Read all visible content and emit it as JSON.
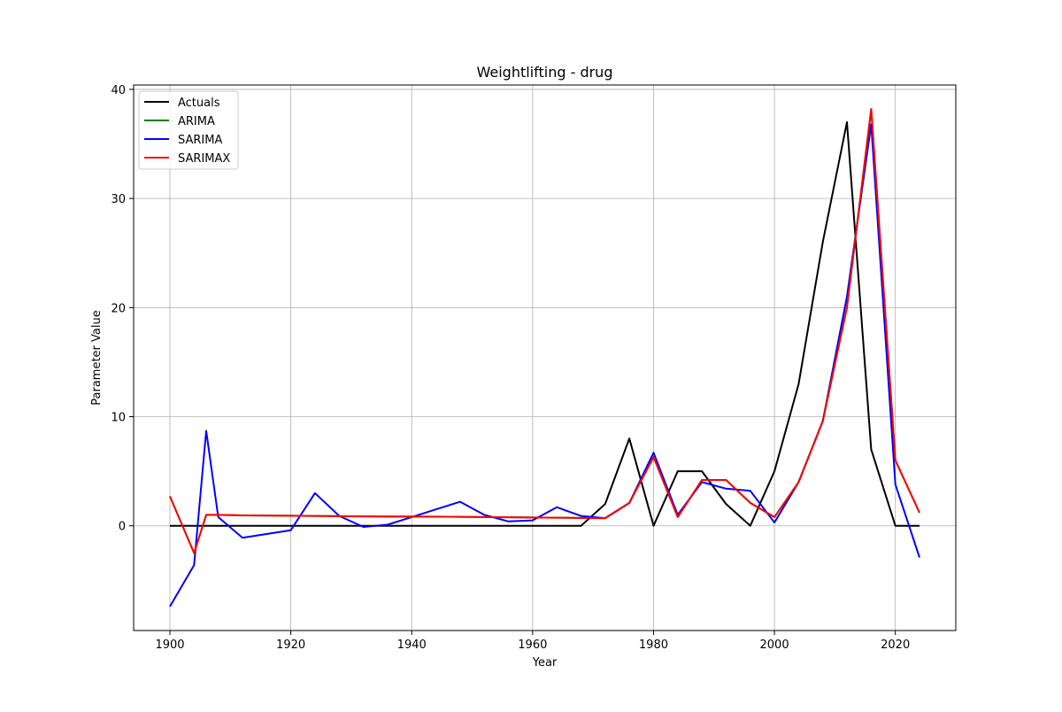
{
  "chart_data": {
    "type": "line",
    "title": "Weightlifting - drug",
    "xlabel": "Year",
    "ylabel": "Parameter Value",
    "xlim": [
      1894,
      2030
    ],
    "ylim": [
      -9.6,
      40.4
    ],
    "xticks": [
      1900,
      1920,
      1940,
      1960,
      1980,
      2000,
      2020
    ],
    "yticks": [
      0,
      10,
      20,
      30,
      40
    ],
    "grid": true,
    "legend_position": "upper-left",
    "series": [
      {
        "name": "Actuals",
        "color": "#000000",
        "x": [
          1900,
          1904,
          1908,
          1912,
          1920,
          1924,
          1928,
          1932,
          1936,
          1948,
          1952,
          1956,
          1960,
          1964,
          1968,
          1972,
          1976,
          1980,
          1984,
          1988,
          1992,
          1996,
          2000,
          2004,
          2008,
          2012,
          2016,
          2020,
          2024
        ],
        "values": [
          0,
          0,
          0,
          0,
          0,
          0,
          0,
          0,
          0,
          0,
          0,
          0,
          0,
          0,
          0,
          2,
          8,
          0,
          5,
          5,
          2,
          0,
          5,
          13,
          26,
          37,
          7,
          0,
          0
        ]
      },
      {
        "name": "ARIMA",
        "color": "#008000",
        "x": [
          1900,
          1904,
          1906,
          1908,
          1912,
          1920,
          1924,
          1928,
          1932,
          1936,
          1948,
          1952,
          1956,
          1960,
          1964,
          1968,
          1972,
          1976,
          1980,
          1984,
          1988,
          1992,
          1996,
          2000,
          2004,
          2008,
          2012,
          2016,
          2020,
          2024
        ],
        "values": [
          2.7,
          -2.5,
          1.0,
          1.0,
          0.95,
          0.92,
          0.9,
          0.88,
          0.86,
          0.85,
          0.82,
          0.8,
          0.78,
          0.76,
          0.74,
          0.72,
          0.7,
          2.1,
          6.3,
          0.8,
          4.2,
          4.2,
          2.1,
          0.8,
          4.0,
          9.6,
          20.0,
          38.2,
          6.0,
          1.2
        ]
      },
      {
        "name": "SARIMA",
        "color": "#0000ff",
        "x": [
          1900,
          1904,
          1906,
          1908,
          1912,
          1920,
          1924,
          1928,
          1932,
          1936,
          1940,
          1944,
          1948,
          1952,
          1956,
          1960,
          1964,
          1968,
          1972,
          1976,
          1980,
          1984,
          1988,
          1992,
          1996,
          2000,
          2004,
          2008,
          2012,
          2016,
          2020,
          2024
        ],
        "values": [
          -7.4,
          -3.6,
          8.7,
          0.8,
          -1.1,
          -0.4,
          3.0,
          0.9,
          -0.1,
          0.1,
          0.8,
          1.5,
          2.2,
          1.0,
          0.4,
          0.5,
          1.7,
          0.9,
          0.7,
          2.1,
          6.7,
          1.0,
          4.0,
          3.4,
          3.2,
          0.3,
          4.0,
          9.6,
          21.0,
          36.8,
          3.8,
          -2.9
        ]
      },
      {
        "name": "SARIMAX",
        "color": "#ff0000",
        "x": [
          1900,
          1904,
          1906,
          1908,
          1912,
          1920,
          1924,
          1928,
          1932,
          1936,
          1948,
          1952,
          1956,
          1960,
          1964,
          1968,
          1972,
          1976,
          1980,
          1984,
          1988,
          1992,
          1996,
          2000,
          2004,
          2008,
          2012,
          2016,
          2020,
          2024
        ],
        "values": [
          2.7,
          -2.5,
          1.0,
          1.0,
          0.95,
          0.92,
          0.9,
          0.88,
          0.86,
          0.85,
          0.82,
          0.8,
          0.78,
          0.76,
          0.74,
          0.72,
          0.7,
          2.1,
          6.3,
          0.8,
          4.2,
          4.2,
          2.1,
          0.8,
          4.0,
          9.6,
          20.0,
          38.2,
          6.0,
          1.2
        ]
      }
    ]
  }
}
